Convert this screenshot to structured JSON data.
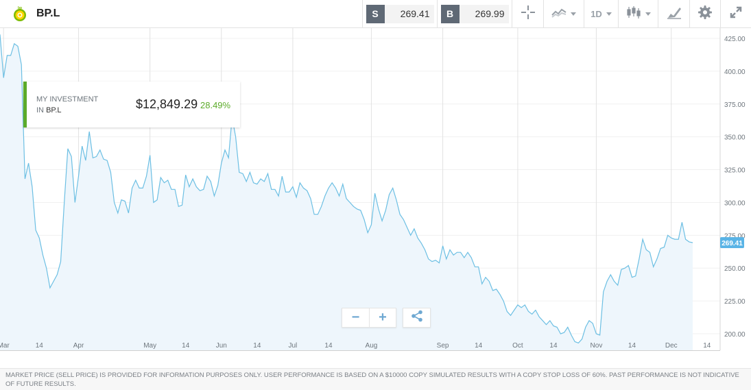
{
  "header": {
    "symbol": "BP.L",
    "logo": "bp-helios-logo"
  },
  "toolbar": {
    "sell_tag": "S",
    "sell_price": "269.41",
    "buy_tag": "B",
    "buy_price": "269.99",
    "timeframe": "1D",
    "icons": [
      "crosshair-icon",
      "line-chart-type-icon",
      "candlestick-icon",
      "draw-tool-icon",
      "gear-icon",
      "fullscreen-icon"
    ]
  },
  "investment": {
    "label_line1": "MY INVESTMENT",
    "label_prefix": "IN",
    "label_symbol": "BP.L",
    "value": "$12,849.29",
    "change_pct": "28.49%"
  },
  "controls": {
    "zoom_out": "−",
    "zoom_in": "+",
    "share": "share-icon"
  },
  "colors": {
    "line": "#6cbfe3",
    "area": "#eef6fc",
    "accent_green": "#5cab2a",
    "price_tag": "#5ab4e6",
    "tag_grey": "#5f6975"
  },
  "chart_data": {
    "type": "area",
    "y_ticks": [
      "425.00",
      "400.00",
      "375.00",
      "350.00",
      "325.00",
      "300.00",
      "275.00",
      "250.00",
      "225.00",
      "200.00"
    ],
    "ylim": [
      188,
      430
    ],
    "x_ticks": [
      {
        "label": "Mar",
        "i": 1
      },
      {
        "label": "14",
        "i": 11
      },
      {
        "label": "Apr",
        "i": 22
      },
      {
        "label": "May",
        "i": 42
      },
      {
        "label": "14",
        "i": 52
      },
      {
        "label": "Jun",
        "i": 62
      },
      {
        "label": "14",
        "i": 72
      },
      {
        "label": "Jul",
        "i": 82
      },
      {
        "label": "14",
        "i": 92
      },
      {
        "label": "Aug",
        "i": 104
      },
      {
        "label": "Sep",
        "i": 124
      },
      {
        "label": "14",
        "i": 134
      },
      {
        "label": "Oct",
        "i": 145
      },
      {
        "label": "14",
        "i": 155
      },
      {
        "label": "Nov",
        "i": 167
      },
      {
        "label": "14",
        "i": 177
      },
      {
        "label": "Dec",
        "i": 188
      },
      {
        "label": "14",
        "i": 198
      }
    ],
    "last_price_label": "269.41",
    "values": [
      428,
      395,
      412,
      412,
      421,
      419,
      405,
      318,
      330,
      312,
      279,
      273,
      260,
      250,
      235,
      240,
      245,
      255,
      300,
      341,
      335,
      300,
      320,
      343,
      332,
      354,
      334,
      335,
      340,
      333,
      332,
      323,
      300,
      292,
      302,
      301,
      292,
      311,
      317,
      311,
      311,
      320,
      336,
      300,
      302,
      319,
      315,
      317,
      310,
      310,
      297,
      298,
      321,
      312,
      318,
      312,
      309,
      310,
      320,
      316,
      305,
      313,
      330,
      340,
      334,
      365,
      350,
      323,
      322,
      316,
      323,
      315,
      314,
      318,
      316,
      322,
      310,
      310,
      305,
      320,
      308,
      308,
      312,
      304,
      315,
      311,
      309,
      303,
      291,
      291,
      297,
      305,
      311,
      315,
      311,
      305,
      314,
      303,
      300,
      297,
      295,
      294,
      287,
      277,
      283,
      307,
      295,
      286,
      294,
      306,
      311,
      302,
      291,
      287,
      281,
      275,
      280,
      273,
      269,
      264,
      257,
      255,
      256,
      254,
      267,
      257,
      264,
      260,
      262,
      262,
      258,
      262,
      258,
      251,
      251,
      238,
      243,
      240,
      233,
      234,
      230,
      225,
      217,
      214,
      218,
      222,
      220,
      222,
      217,
      215,
      218,
      213,
      210,
      207,
      210,
      206,
      205,
      200,
      201,
      205,
      199,
      194,
      193,
      196,
      205,
      210,
      208,
      200,
      199,
      232,
      240,
      245,
      240,
      237,
      249,
      250,
      252,
      243,
      244,
      257,
      272,
      264,
      262,
      251,
      257,
      265,
      266,
      275,
      273,
      272,
      272,
      285,
      272,
      270,
      269.41
    ]
  },
  "disclaimer": "MARKET PRICE (SELL PRICE) IS PROVIDED FOR INFORMATION PURPOSES ONLY. USER PERFORMANCE IS BASED ON A $10000 COPY SIMULATED RESULTS WITH A COPY STOP LOSS OF 60%. PAST PERFORMANCE IS NOT INDICATIVE OF FUTURE RESULTS."
}
